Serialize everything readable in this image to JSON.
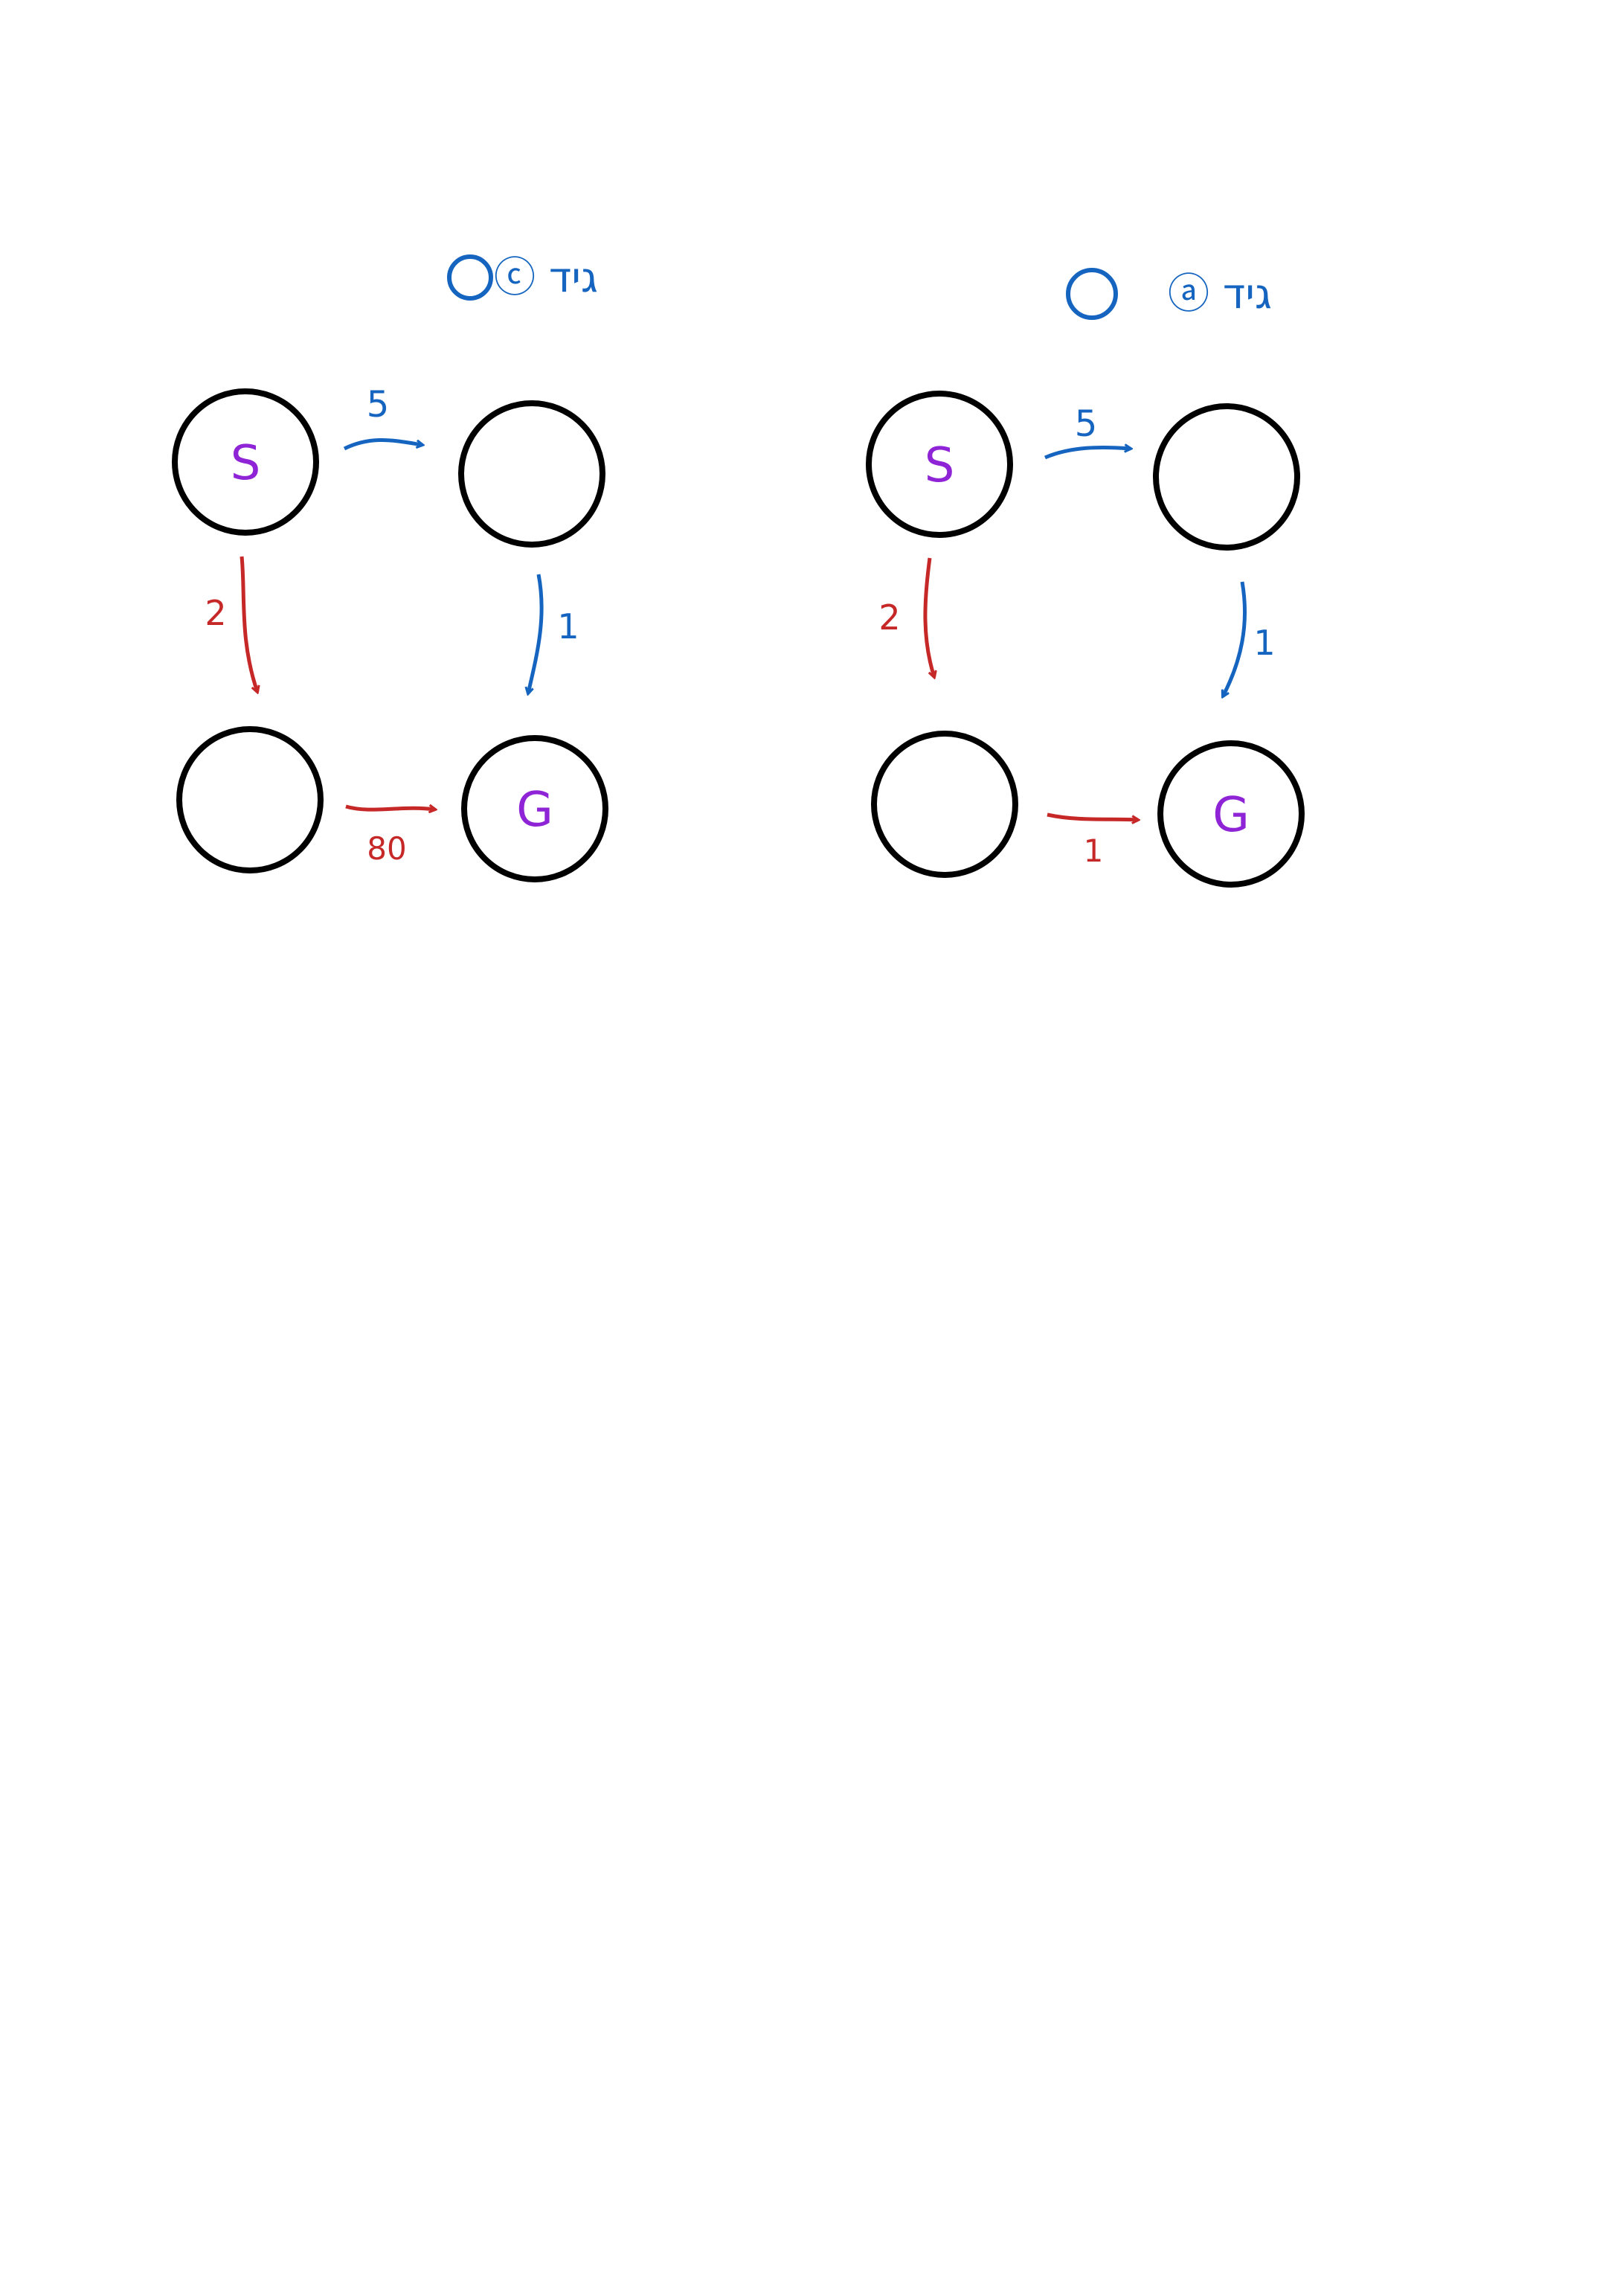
{
  "diagrams": [
    {
      "heading": {
        "label": "ⓒ גיד",
        "color": "#1565c0"
      },
      "nodes": {
        "top_left": "S",
        "top_right": "",
        "bottom_left": "",
        "bottom_right": "G"
      },
      "edges": {
        "top": {
          "label": "5",
          "color": "#1565c0"
        },
        "right": {
          "label": "1",
          "color": "#1565c0"
        },
        "left": {
          "label": "2",
          "color": "#c62828"
        },
        "bottom": {
          "label": "80",
          "color": "#c62828"
        }
      }
    },
    {
      "heading": {
        "label": "ⓐ גיד",
        "color": "#1565c0"
      },
      "nodes": {
        "top_left": "S",
        "top_right": "",
        "bottom_left": "",
        "bottom_right": "G"
      },
      "edges": {
        "top": {
          "label": "5",
          "color": "#1565c0"
        },
        "right": {
          "label": "1",
          "color": "#1565c0"
        },
        "left": {
          "label": "2",
          "color": "#c62828"
        },
        "bottom": {
          "label": "1",
          "color": "#c62828"
        }
      }
    }
  ],
  "colors": {
    "node_stroke": "#000000",
    "node_letter": "#8e24d6",
    "blue": "#1565c0",
    "red": "#c62828"
  }
}
